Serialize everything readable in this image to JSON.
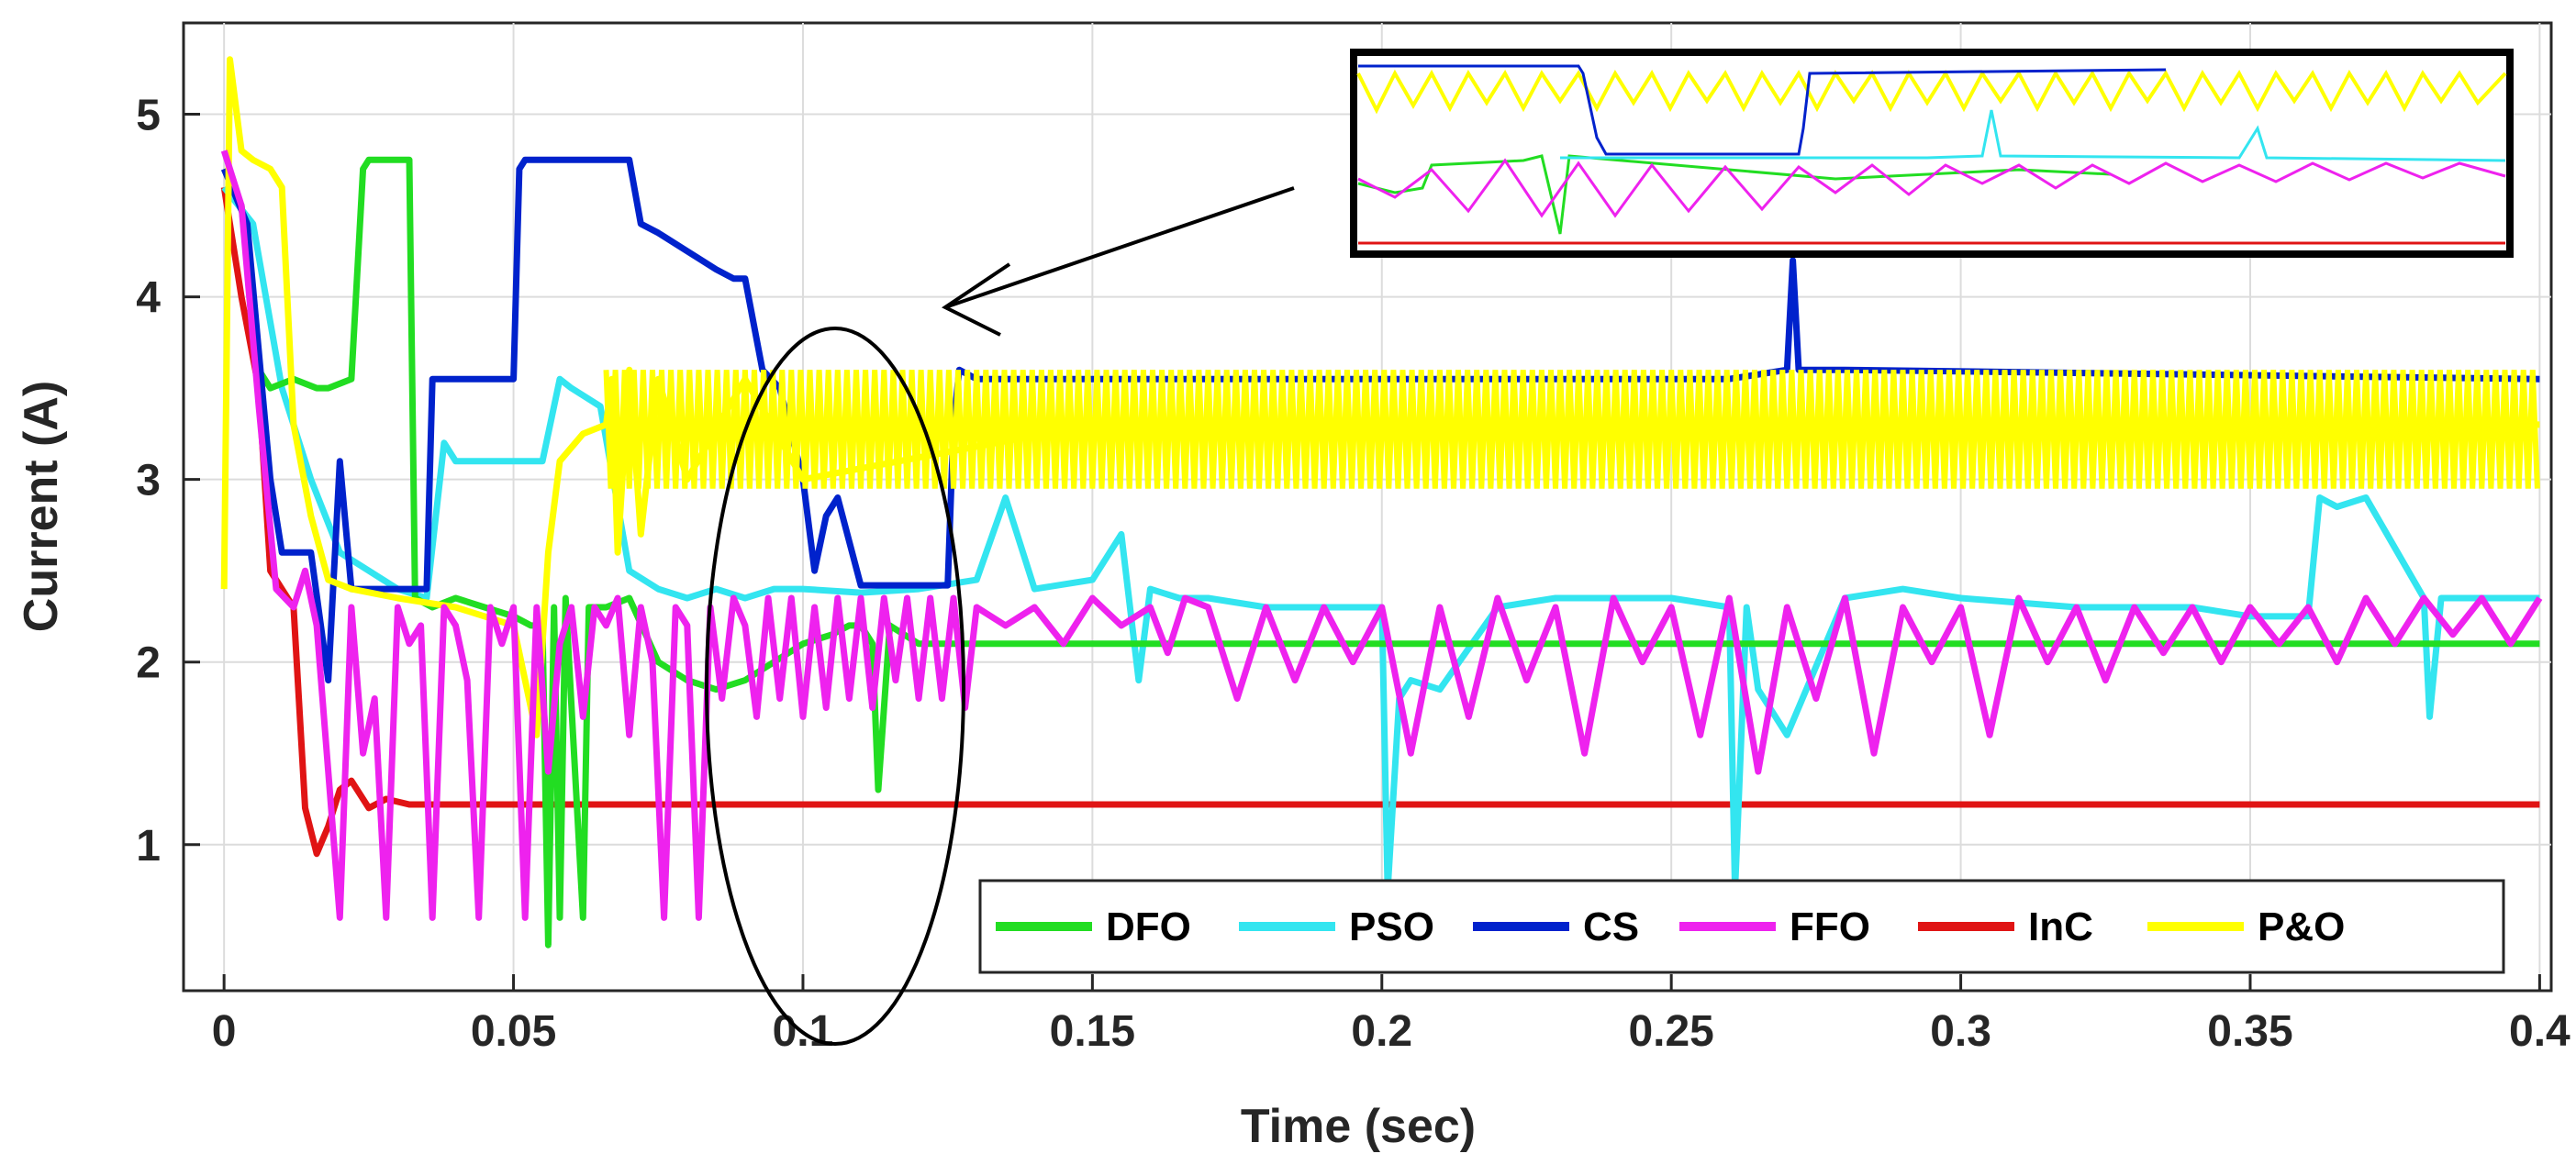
{
  "chart_data": {
    "type": "line",
    "title": "",
    "xlabel": "Time (sec)",
    "ylabel": "Current (A)",
    "xlim": [
      -0.007,
      0.402
    ],
    "ylim": [
      0.2,
      5.5
    ],
    "xticks": [
      0,
      0.05,
      0.1,
      0.15,
      0.2,
      0.25,
      0.3,
      0.35,
      0.4
    ],
    "xtick_labels": [
      "0",
      "0.05",
      "0.1",
      "0.15",
      "0.2",
      "0.25",
      "0.3",
      "0.35",
      "0.4"
    ],
    "yticks": [
      1,
      2,
      3,
      4,
      5
    ],
    "ytick_labels": [
      "1",
      "2",
      "3",
      "4",
      "5"
    ],
    "grid": true,
    "legend_position": "bottom-right",
    "series": [
      {
        "name": "DFO",
        "color": "#22dd22",
        "x": [
          0,
          0.003,
          0.006,
          0.008,
          0.012,
          0.016,
          0.018,
          0.022,
          0.024,
          0.025,
          0.032,
          0.033,
          0.036,
          0.04,
          0.045,
          0.05,
          0.053,
          0.055,
          0.056,
          0.057,
          0.058,
          0.059,
          0.062,
          0.063,
          0.066,
          0.07,
          0.075,
          0.08,
          0.085,
          0.09,
          0.095,
          0.1,
          0.105,
          0.108,
          0.11,
          0.112,
          0.113,
          0.115,
          0.12,
          0.125,
          0.13,
          0.14,
          0.2,
          0.3,
          0.4
        ],
        "y": [
          4.7,
          4.5,
          3.6,
          3.5,
          3.55,
          3.5,
          3.5,
          3.55,
          4.7,
          4.75,
          4.75,
          2.35,
          2.3,
          2.35,
          2.3,
          2.25,
          2.2,
          2.2,
          0.45,
          2.3,
          0.6,
          2.35,
          0.6,
          2.3,
          2.3,
          2.35,
          2.0,
          1.9,
          1.85,
          1.9,
          2.0,
          2.1,
          2.15,
          2.2,
          2.2,
          2.1,
          1.3,
          2.2,
          2.1,
          2.1,
          2.1,
          2.1,
          2.1,
          2.1,
          2.1
        ]
      },
      {
        "name": "PSO",
        "color": "#33e5f0",
        "x": [
          0,
          0.005,
          0.01,
          0.015,
          0.02,
          0.03,
          0.035,
          0.038,
          0.04,
          0.045,
          0.05,
          0.055,
          0.058,
          0.06,
          0.065,
          0.07,
          0.075,
          0.08,
          0.085,
          0.09,
          0.095,
          0.1,
          0.11,
          0.12,
          0.13,
          0.135,
          0.14,
          0.15,
          0.155,
          0.158,
          0.16,
          0.165,
          0.17,
          0.18,
          0.19,
          0.2,
          0.201,
          0.203,
          0.205,
          0.21,
          0.22,
          0.23,
          0.24,
          0.25,
          0.26,
          0.261,
          0.263,
          0.265,
          0.27,
          0.28,
          0.29,
          0.3,
          0.32,
          0.34,
          0.35,
          0.36,
          0.362,
          0.365,
          0.37,
          0.38,
          0.381,
          0.383,
          0.39,
          0.4
        ],
        "y": [
          4.6,
          4.4,
          3.5,
          3.0,
          2.6,
          2.4,
          2.35,
          3.2,
          3.1,
          3.1,
          3.1,
          3.1,
          3.55,
          3.5,
          3.4,
          2.5,
          2.4,
          2.35,
          2.4,
          2.35,
          2.4,
          2.4,
          2.38,
          2.4,
          2.45,
          2.9,
          2.4,
          2.45,
          2.7,
          1.9,
          2.4,
          2.35,
          2.35,
          2.3,
          2.3,
          2.3,
          0.75,
          1.8,
          1.9,
          1.85,
          2.3,
          2.35,
          2.35,
          2.35,
          2.3,
          0.75,
          2.3,
          1.85,
          1.6,
          2.35,
          2.4,
          2.35,
          2.3,
          2.3,
          2.25,
          2.25,
          2.9,
          2.85,
          2.9,
          2.35,
          1.7,
          2.35,
          2.35,
          2.35
        ]
      },
      {
        "name": "CS",
        "color": "#0022cc",
        "x": [
          0,
          0.004,
          0.008,
          0.01,
          0.015,
          0.018,
          0.02,
          0.022,
          0.025,
          0.03,
          0.033,
          0.035,
          0.036,
          0.037,
          0.045,
          0.05,
          0.051,
          0.052,
          0.06,
          0.065,
          0.07,
          0.072,
          0.075,
          0.08,
          0.085,
          0.088,
          0.09,
          0.093,
          0.096,
          0.1,
          0.102,
          0.104,
          0.106,
          0.11,
          0.115,
          0.12,
          0.125,
          0.126,
          0.127,
          0.13,
          0.2,
          0.26,
          0.27,
          0.271,
          0.272,
          0.28,
          0.4
        ],
        "y": [
          4.7,
          4.4,
          3.0,
          2.6,
          2.6,
          1.9,
          3.1,
          2.4,
          2.4,
          2.4,
          2.4,
          2.4,
          3.55,
          3.55,
          3.55,
          3.55,
          4.7,
          4.75,
          4.75,
          4.75,
          4.75,
          4.4,
          4.35,
          4.25,
          4.15,
          4.1,
          4.1,
          3.6,
          3.5,
          3.0,
          2.5,
          2.8,
          2.9,
          2.42,
          2.42,
          2.42,
          2.42,
          3.3,
          3.6,
          3.55,
          3.55,
          3.55,
          3.6,
          4.2,
          3.6,
          3.6,
          3.55
        ]
      },
      {
        "name": "FFO",
        "color": "#ee22ee",
        "x": [
          0,
          0.003,
          0.006,
          0.009,
          0.012,
          0.014,
          0.016,
          0.018,
          0.02,
          0.022,
          0.024,
          0.026,
          0.028,
          0.03,
          0.032,
          0.034,
          0.036,
          0.038,
          0.04,
          0.042,
          0.044,
          0.046,
          0.048,
          0.05,
          0.052,
          0.054,
          0.056,
          0.058,
          0.06,
          0.062,
          0.064,
          0.066,
          0.068,
          0.07,
          0.072,
          0.074,
          0.076,
          0.078,
          0.08,
          0.082,
          0.084,
          0.086,
          0.088,
          0.09,
          0.092,
          0.094,
          0.096,
          0.098,
          0.1,
          0.102,
          0.104,
          0.106,
          0.108,
          0.11,
          0.112,
          0.114,
          0.116,
          0.118,
          0.12,
          0.122,
          0.124,
          0.126,
          0.128,
          0.13,
          0.135,
          0.14,
          0.145,
          0.15,
          0.155,
          0.16,
          0.163,
          0.166,
          0.17,
          0.175,
          0.18,
          0.185,
          0.19,
          0.195,
          0.2,
          0.205,
          0.21,
          0.215,
          0.22,
          0.225,
          0.23,
          0.235,
          0.24,
          0.245,
          0.25,
          0.255,
          0.26,
          0.265,
          0.27,
          0.275,
          0.28,
          0.285,
          0.29,
          0.295,
          0.3,
          0.305,
          0.31,
          0.315,
          0.32,
          0.325,
          0.33,
          0.335,
          0.34,
          0.345,
          0.35,
          0.355,
          0.36,
          0.365,
          0.37,
          0.375,
          0.38,
          0.385,
          0.39,
          0.395,
          0.4
        ],
        "y": [
          4.8,
          4.5,
          3.4,
          2.4,
          2.3,
          2.5,
          2.2,
          1.4,
          0.6,
          2.3,
          1.5,
          1.8,
          0.6,
          2.3,
          2.1,
          2.2,
          0.6,
          2.3,
          2.2,
          1.9,
          0.6,
          2.3,
          2.1,
          2.3,
          0.6,
          2.3,
          1.4,
          2.1,
          2.3,
          1.7,
          2.3,
          2.2,
          2.35,
          1.6,
          2.3,
          2.0,
          0.6,
          2.3,
          2.2,
          0.6,
          2.3,
          1.8,
          2.35,
          2.2,
          1.7,
          2.35,
          1.8,
          2.35,
          1.7,
          2.3,
          1.75,
          2.35,
          1.8,
          2.35,
          1.75,
          2.35,
          1.9,
          2.35,
          1.8,
          2.35,
          1.8,
          2.35,
          1.75,
          2.3,
          2.2,
          2.3,
          2.1,
          2.35,
          2.2,
          2.3,
          2.05,
          2.35,
          2.3,
          1.8,
          2.3,
          1.9,
          2.3,
          2.0,
          2.3,
          1.5,
          2.3,
          1.7,
          2.35,
          1.9,
          2.3,
          1.5,
          2.35,
          2.0,
          2.3,
          1.6,
          2.35,
          1.4,
          2.3,
          1.8,
          2.35,
          1.5,
          2.3,
          2.0,
          2.3,
          1.6,
          2.35,
          2.0,
          2.3,
          1.9,
          2.3,
          2.05,
          2.3,
          2.0,
          2.3,
          2.1,
          2.3,
          2.0,
          2.35,
          2.1,
          2.35,
          2.15,
          2.35,
          2.1,
          2.35
        ]
      },
      {
        "name": "InC",
        "color": "#e01414",
        "x": [
          0,
          0.003,
          0.006,
          0.008,
          0.01,
          0.012,
          0.014,
          0.016,
          0.018,
          0.02,
          0.022,
          0.025,
          0.028,
          0.032,
          0.04,
          0.1,
          0.2,
          0.3,
          0.4
        ],
        "y": [
          4.6,
          4.0,
          3.5,
          2.5,
          2.4,
          2.3,
          1.2,
          0.95,
          1.1,
          1.3,
          1.35,
          1.2,
          1.25,
          1.22,
          1.22,
          1.22,
          1.22,
          1.22,
          1.22
        ]
      },
      {
        "name": "P&O",
        "color": "#ffff00",
        "x": [
          0,
          0.001,
          0.003,
          0.005,
          0.008,
          0.01,
          0.012,
          0.015,
          0.018,
          0.022,
          0.03,
          0.04,
          0.05,
          0.052,
          0.054,
          0.056,
          0.058,
          0.062,
          0.066,
          0.067,
          0.068,
          0.07,
          0.072,
          0.075,
          0.08,
          0.09,
          0.1,
          0.15,
          0.2,
          0.25,
          0.3,
          0.35,
          0.4
        ],
        "y": [
          2.4,
          5.3,
          4.8,
          4.75,
          4.7,
          4.6,
          3.3,
          2.8,
          2.45,
          2.4,
          2.35,
          2.3,
          2.2,
          1.9,
          1.6,
          2.6,
          3.1,
          3.25,
          3.3,
          3.55,
          2.6,
          3.6,
          2.7,
          3.55,
          3.0,
          3.55,
          3.0,
          3.3,
          3.3,
          3.3,
          3.3,
          3.3,
          3.3
        ],
        "band": {
          "x_start": 0.066,
          "x_end": 0.4,
          "low": 2.95,
          "high": 3.6
        }
      }
    ],
    "annotations": [
      {
        "type": "ellipse",
        "center": [
          0.11,
          2.6
        ],
        "description": "highlighted region"
      },
      {
        "type": "inset",
        "description": "zoomed view of highlighted region"
      }
    ]
  }
}
